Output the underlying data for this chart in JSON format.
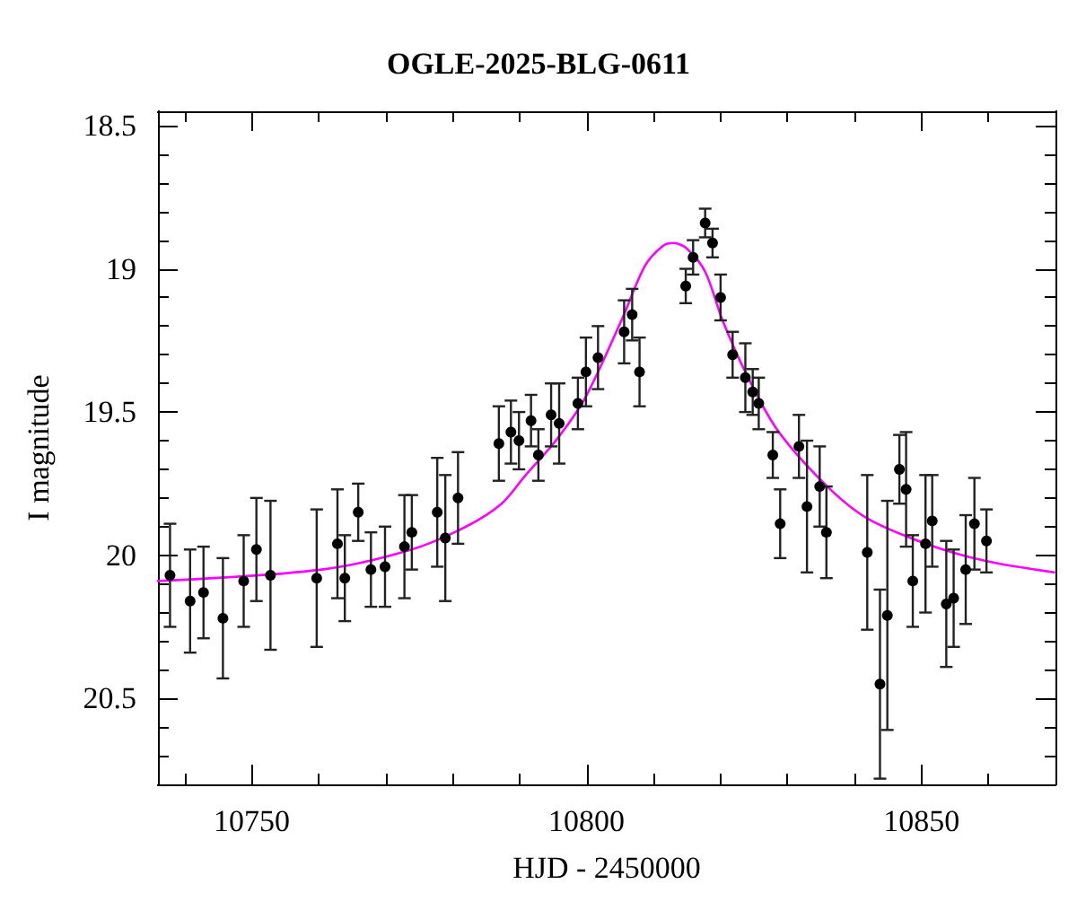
{
  "chart_data": {
    "type": "scatter",
    "title": "OGLE-2025-BLG-0611",
    "xlabel": "HJD - 2450000",
    "ylabel": "I magnitude",
    "xlim": [
      10736,
      10870
    ],
    "ylim": [
      20.8,
      18.45
    ],
    "xticks": [
      {
        "value": 10740,
        "label": null
      },
      10750,
      {
        "value": 10760,
        "label": null
      },
      {
        "value": 10770,
        "label": null
      },
      {
        "value": 10780,
        "label": null
      },
      {
        "value": 10790,
        "label": null
      },
      10800,
      {
        "value": 10810,
        "label": null
      },
      {
        "value": 10820,
        "label": null
      },
      {
        "value": 10830,
        "label": null
      },
      {
        "value": 10840,
        "label": null
      },
      10850,
      {
        "value": 10860,
        "label": null
      }
    ],
    "yticks": [
      18.5,
      {
        "value": 18.6,
        "label": null
      },
      {
        "value": 18.7,
        "label": null
      },
      {
        "value": 18.8,
        "label": null
      },
      {
        "value": 18.9,
        "label": null
      },
      19,
      {
        "value": 19.1,
        "label": null
      },
      {
        "value": 19.2,
        "label": null
      },
      {
        "value": 19.3,
        "label": null
      },
      {
        "value": 19.4,
        "label": null
      },
      19.5,
      {
        "value": 19.6,
        "label": null
      },
      {
        "value": 19.7,
        "label": null
      },
      {
        "value": 19.8,
        "label": null
      },
      {
        "value": 19.9,
        "label": null
      },
      20,
      {
        "value": 20.1,
        "label": null
      },
      {
        "value": 20.2,
        "label": null
      },
      {
        "value": 20.3,
        "label": null
      },
      {
        "value": 20.4,
        "label": null
      },
      20.5,
      {
        "value": 20.6,
        "label": null
      },
      {
        "value": 20.7,
        "label": null
      }
    ],
    "grid": false,
    "series": [
      {
        "color": "#000000",
        "marker": "circle",
        "x": [
          10737.8,
          10740.8,
          10742.8,
          10745.7,
          10748.8,
          10750.7,
          10752.8,
          10759.7,
          10762.8,
          10763.9,
          10765.9,
          10767.8,
          10769.9,
          10772.8,
          10773.9,
          10777.7,
          10778.9,
          10780.8,
          10786.9,
          10788.7,
          10789.9,
          10791.7,
          10792.8,
          10794.7,
          10795.9,
          10798.7,
          10799.9,
          10801.7,
          10805.6,
          10806.8,
          10807.9,
          10814.8,
          10815.9,
          10817.7,
          10818.8,
          10820.0,
          10821.8,
          10823.7,
          10824.8,
          10825.7,
          10827.8,
          10828.9,
          10831.7,
          10832.9,
          10834.8,
          10835.8,
          10841.9,
          10843.8,
          10844.9,
          10846.7,
          10847.7,
          10848.7,
          10850.6,
          10851.6,
          10853.7,
          10854.8,
          10856.6,
          10857.9,
          10859.7
        ],
        "values": [
          20.07,
          20.16,
          20.13,
          20.22,
          20.09,
          19.98,
          20.07,
          20.08,
          19.96,
          20.08,
          19.85,
          20.05,
          20.04,
          19.97,
          19.92,
          19.85,
          19.94,
          19.8,
          19.61,
          19.57,
          19.6,
          19.53,
          19.65,
          19.51,
          19.54,
          19.47,
          19.36,
          19.31,
          19.22,
          19.16,
          19.36,
          19.06,
          18.96,
          18.84,
          18.91,
          19.1,
          19.3,
          19.38,
          19.43,
          19.47,
          19.65,
          19.89,
          19.62,
          19.83,
          19.76,
          19.92,
          19.99,
          20.45,
          20.21,
          19.7,
          19.77,
          20.09,
          19.96,
          19.88,
          20.17,
          20.15,
          20.05,
          19.89,
          19.95
        ],
        "errors": [
          0.18,
          0.18,
          0.16,
          0.21,
          0.16,
          0.18,
          0.26,
          0.24,
          0.19,
          0.15,
          0.1,
          0.13,
          0.14,
          0.18,
          0.13,
          0.19,
          0.22,
          0.16,
          0.13,
          0.11,
          0.1,
          0.09,
          0.09,
          0.11,
          0.14,
          0.09,
          0.12,
          0.11,
          0.11,
          0.09,
          0.12,
          0.06,
          0.06,
          0.05,
          0.05,
          0.08,
          0.08,
          0.12,
          0.08,
          0.09,
          0.08,
          0.12,
          0.11,
          0.23,
          0.14,
          0.16,
          0.27,
          0.33,
          0.4,
          0.12,
          0.2,
          0.16,
          0.24,
          0.16,
          0.22,
          0.17,
          0.19,
          0.16,
          0.11
        ]
      },
      {
        "type": "line",
        "color": "#ff00ff",
        "marker": "none",
        "line_style": "solid",
        "x": [
          10736,
          10760.5,
          10773.9,
          10782,
          10787.3,
          10790.9,
          10795.4,
          10799.8,
          10805.2,
          10808.7,
          10811.4,
          10813.0,
          10815.0,
          10817.7,
          10820.3,
          10823.9,
          10828.4,
          10835.5,
          10841.8,
          10850.7,
          10859.6,
          10869.8
        ],
        "values": [
          20.09,
          20.05,
          19.98,
          19.9,
          19.82,
          19.72,
          19.6,
          19.45,
          19.18,
          18.99,
          18.92,
          18.91,
          18.93,
          19.01,
          19.18,
          19.37,
          19.56,
          19.75,
          19.87,
          19.96,
          20.02,
          20.06
        ]
      }
    ]
  }
}
